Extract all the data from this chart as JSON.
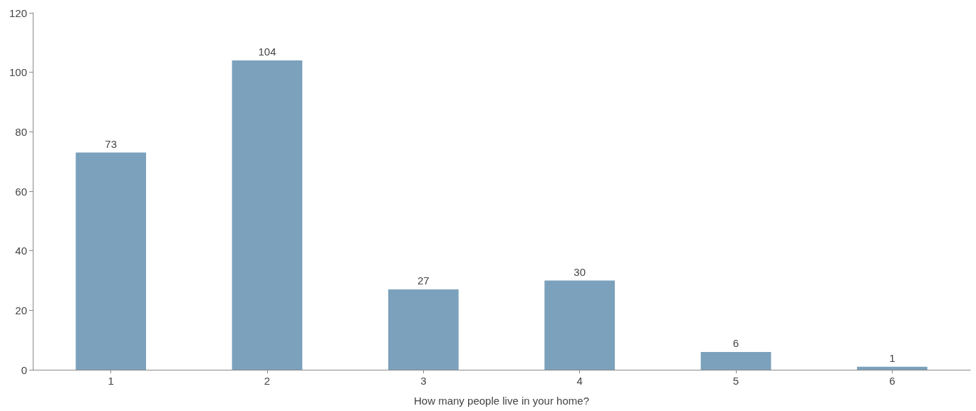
{
  "chart_data": {
    "type": "bar",
    "xlabel": "How many people live in your home?",
    "categories": [
      "1",
      "2",
      "3",
      "4",
      "5",
      "6"
    ],
    "values": [
      73,
      104,
      27,
      30,
      6,
      1
    ],
    "color": "#7ba1bc",
    "ylim": [
      0,
      120
    ],
    "yticks": [
      0,
      20,
      40,
      60,
      80,
      100,
      120
    ],
    "grid": false,
    "data_labels": true
  }
}
